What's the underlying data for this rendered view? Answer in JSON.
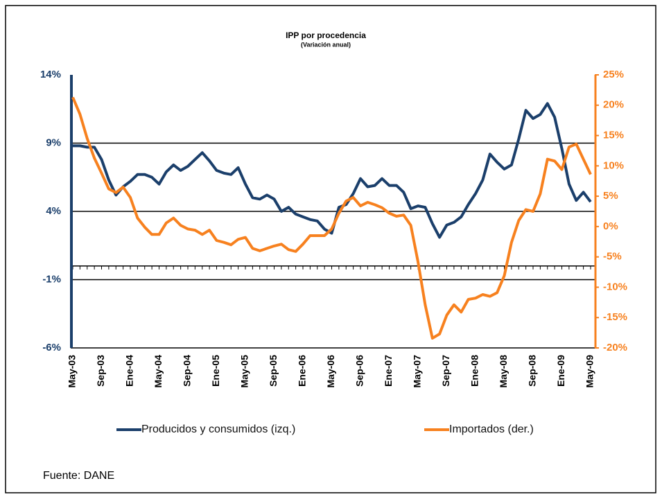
{
  "chart_data": {
    "type": "line",
    "title": "IPP por procedencia",
    "subtitle": "(Variación anual)",
    "categories": [
      "May-03",
      null,
      null,
      null,
      "Sep-03",
      null,
      null,
      null,
      "Ene-04",
      null,
      null,
      null,
      "May-04",
      null,
      null,
      null,
      "Sep-04",
      null,
      null,
      null,
      "Ene-05",
      null,
      null,
      null,
      "May-05",
      null,
      null,
      null,
      "Sep-05",
      null,
      null,
      null,
      "Ene-06",
      null,
      null,
      null,
      "May-06",
      null,
      null,
      null,
      "Sep-06",
      null,
      null,
      null,
      "Ene-07",
      null,
      null,
      null,
      "May-07",
      null,
      null,
      null,
      "Sep-07",
      null,
      null,
      null,
      "Ene-08",
      null,
      null,
      null,
      "May-08",
      null,
      null,
      null,
      "Sep-08",
      null,
      null,
      null,
      "Ene-09",
      null,
      null,
      null,
      "May-09"
    ],
    "series": [
      {
        "name": "Producidos y consumidos (izq.)",
        "color": "#1b3f6b",
        "axis": "y",
        "values": [
          8.8,
          8.8,
          8.7,
          8.7,
          7.8,
          6.3,
          5.2,
          5.8,
          6.2,
          6.7,
          6.7,
          6.5,
          6.0,
          6.9,
          7.4,
          7.0,
          7.3,
          7.8,
          8.3,
          7.7,
          7.0,
          6.8,
          6.7,
          7.2,
          6.0,
          5.0,
          4.9,
          5.2,
          4.9,
          4.0,
          4.3,
          3.8,
          3.6,
          3.4,
          3.3,
          2.7,
          2.4,
          4.3,
          4.5,
          5.3,
          6.4,
          5.8,
          5.9,
          6.4,
          5.9,
          5.9,
          5.4,
          4.2,
          4.4,
          4.3,
          3.1,
          2.1,
          3.0,
          3.2,
          3.6,
          4.5,
          5.3,
          6.3,
          8.2,
          7.6,
          7.1,
          7.4,
          9.3,
          11.4,
          10.8,
          11.1,
          11.9,
          10.9,
          8.6,
          6.0,
          4.8,
          5.4,
          4.7
        ]
      },
      {
        "name": "Importados (der.)",
        "color": "#f7811f",
        "axis": "y2",
        "values": [
          21.3,
          18.5,
          14.5,
          11.3,
          8.8,
          6.2,
          5.6,
          6.5,
          4.8,
          1.4,
          -0.1,
          -1.3,
          -1.3,
          0.6,
          1.4,
          0.2,
          -0.4,
          -0.6,
          -1.3,
          -0.6,
          -2.3,
          -2.6,
          -3.0,
          -2.1,
          -1.8,
          -3.6,
          -4.0,
          -3.6,
          -3.2,
          -2.9,
          -3.8,
          -4.1,
          -2.9,
          -1.5,
          -1.5,
          -1.5,
          -0.4,
          2.2,
          4.2,
          4.8,
          3.4,
          4.0,
          3.6,
          3.1,
          2.2,
          1.7,
          1.9,
          0.2,
          -5.8,
          -12.9,
          -18.4,
          -17.7,
          -14.6,
          -12.9,
          -14.1,
          -12.0,
          -11.8,
          -11.2,
          -11.5,
          -10.9,
          -8.1,
          -2.6,
          1.0,
          2.8,
          2.5,
          5.4,
          11.1,
          10.8,
          9.4,
          13.1,
          13.6,
          11.1,
          8.6
        ]
      }
    ],
    "ylim": [
      -6,
      14
    ],
    "yticks": [
      {
        "value": -6,
        "label": "-6%"
      },
      {
        "value": -1,
        "label": "-1%"
      },
      {
        "value": 4,
        "label": "4%"
      },
      {
        "value": 9,
        "label": "9%"
      },
      {
        "value": 14,
        "label": "14%"
      }
    ],
    "y2lim": [
      -20,
      25
    ],
    "y2ticks": [
      {
        "value": -20,
        "label": "-20%"
      },
      {
        "value": -15,
        "label": "-15%"
      },
      {
        "value": -10,
        "label": "-10%"
      },
      {
        "value": -5,
        "label": "-5%"
      },
      {
        "value": 0,
        "label": "0%"
      },
      {
        "value": 5,
        "label": "5%"
      },
      {
        "value": 10,
        "label": "10%"
      },
      {
        "value": 15,
        "label": "15%"
      },
      {
        "value": 20,
        "label": "20%"
      },
      {
        "value": 25,
        "label": "25%"
      }
    ],
    "grid": true,
    "legend": "bottom"
  },
  "source": "Fuente: DANE"
}
